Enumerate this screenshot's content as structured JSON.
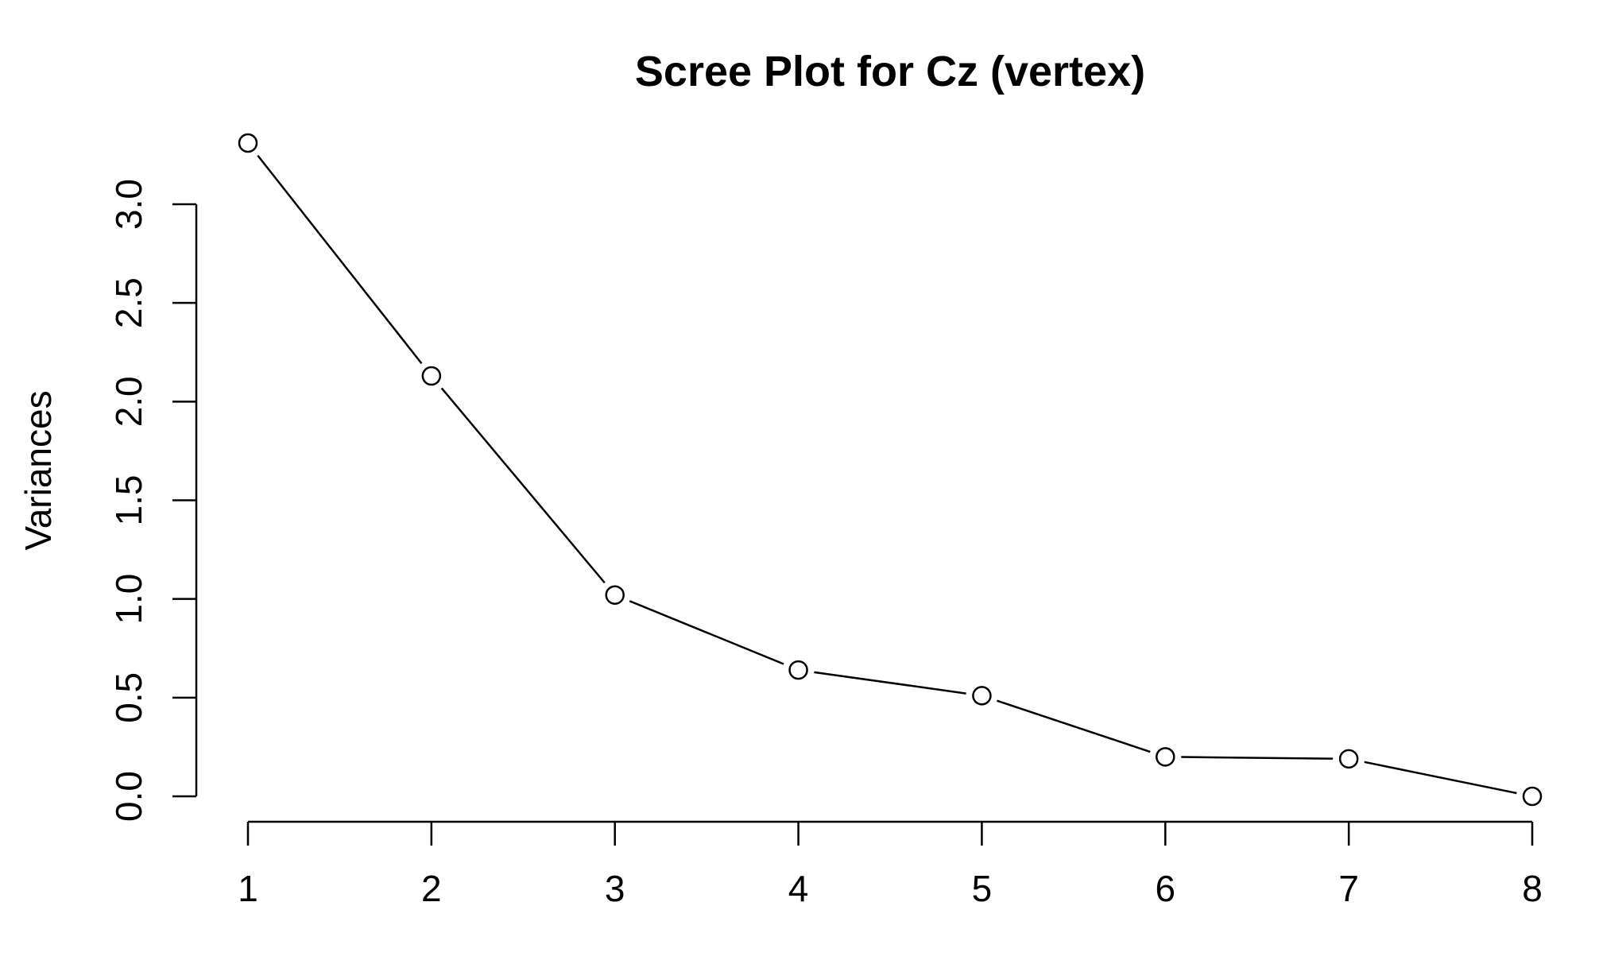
{
  "chart_data": {
    "type": "line",
    "title": "Scree Plot for Cz (vertex)",
    "xlabel": "",
    "ylabel": "Variances",
    "x": [
      1,
      2,
      3,
      4,
      5,
      6,
      7,
      8
    ],
    "x_tick_labels": [
      "1",
      "2",
      "3",
      "4",
      "5",
      "6",
      "7",
      "8"
    ],
    "y_ticks": [
      0.0,
      0.5,
      1.0,
      1.5,
      2.0,
      2.5,
      3.0
    ],
    "y_tick_labels": [
      "0.0",
      "0.5",
      "1.0",
      "1.5",
      "2.0",
      "2.5",
      "3.0"
    ],
    "series": [
      {
        "values": [
          3.31,
          2.13,
          1.02,
          0.64,
          0.51,
          0.2,
          0.19,
          0.0
        ],
        "marker": "open-circle",
        "color": "#000000"
      }
    ],
    "xlim": [
      1,
      8
    ],
    "ylim": [
      0,
      3.31
    ],
    "grid": false,
    "legend": "none"
  }
}
